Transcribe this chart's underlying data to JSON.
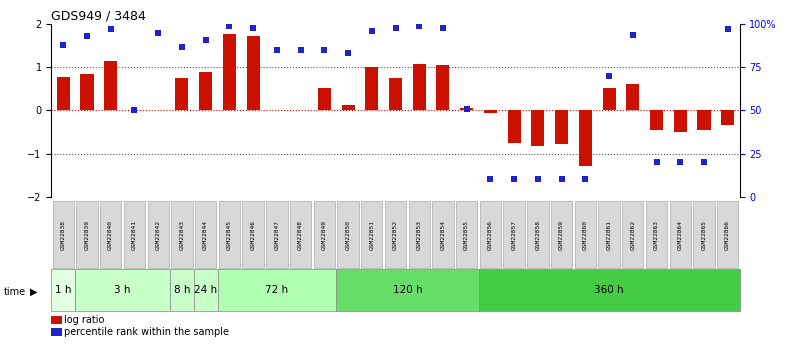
{
  "title": "GDS949 / 3484",
  "samples": [
    "GSM22838",
    "GSM22839",
    "GSM22840",
    "GSM22841",
    "GSM22842",
    "GSM22843",
    "GSM22844",
    "GSM22845",
    "GSM22846",
    "GSM22847",
    "GSM22848",
    "GSM22849",
    "GSM22850",
    "GSM22851",
    "GSM22852",
    "GSM22853",
    "GSM22854",
    "GSM22855",
    "GSM22856",
    "GSM22857",
    "GSM22858",
    "GSM22859",
    "GSM22860",
    "GSM22861",
    "GSM22862",
    "GSM22863",
    "GSM22864",
    "GSM22865",
    "GSM22866"
  ],
  "log_ratio": [
    0.78,
    0.85,
    1.15,
    0.0,
    0.0,
    0.75,
    0.88,
    1.78,
    1.72,
    0.0,
    0.0,
    0.52,
    0.12,
    1.0,
    0.75,
    1.08,
    1.05,
    0.05,
    -0.05,
    -0.75,
    -0.82,
    -0.78,
    -1.28,
    0.52,
    0.62,
    -0.45,
    -0.5,
    -0.45,
    -0.35
  ],
  "percentile": [
    88,
    93,
    97,
    50,
    95,
    87,
    91,
    99,
    98,
    85,
    85,
    85,
    83,
    96,
    98,
    99,
    98,
    51,
    10,
    10,
    10,
    10,
    10,
    70,
    94,
    20,
    20,
    20,
    97
  ],
  "time_groups": [
    {
      "label": "1 h",
      "start": 0,
      "end": 1,
      "color": "#e0ffe0"
    },
    {
      "label": "3 h",
      "start": 1,
      "end": 5,
      "color": "#c8ffc8"
    },
    {
      "label": "8 h",
      "start": 5,
      "end": 6,
      "color": "#c8ffc8"
    },
    {
      "label": "24 h",
      "start": 6,
      "end": 7,
      "color": "#c8ffc8"
    },
    {
      "label": "72 h",
      "start": 7,
      "end": 12,
      "color": "#b0ffb0"
    },
    {
      "label": "120 h",
      "start": 12,
      "end": 18,
      "color": "#66dd66"
    },
    {
      "label": "360 h",
      "start": 18,
      "end": 29,
      "color": "#44cc44"
    }
  ],
  "bar_color": "#cc1100",
  "dot_color": "#2222cc",
  "zero_line_color": "#dd0000",
  "dotted_line_color": "#555555",
  "ylim": [
    -2,
    2
  ],
  "y2lim": [
    0,
    100
  ],
  "background": "#ffffff",
  "sample_box_color": "#d8d8d8",
  "sample_box_edge": "#aaaaaa"
}
